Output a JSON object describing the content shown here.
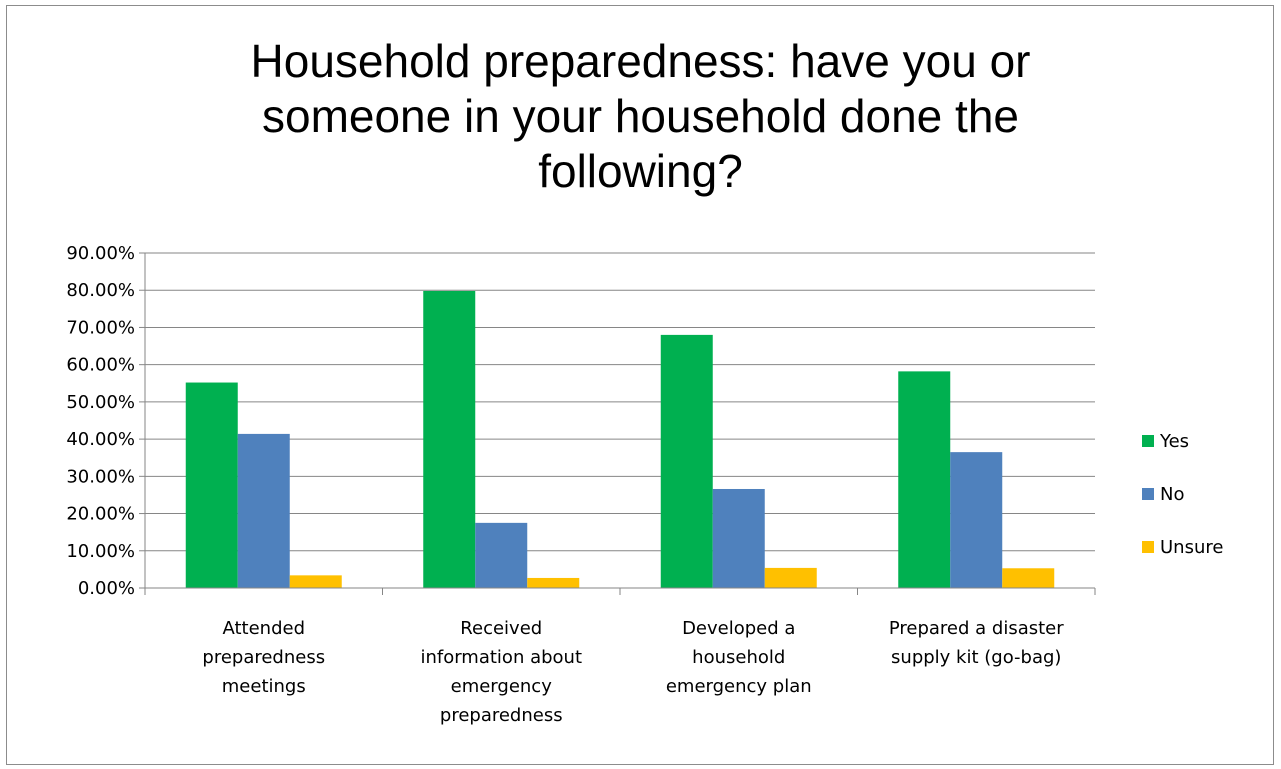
{
  "chart_data": {
    "type": "bar",
    "title_lines": [
      "Household preparedness: have you or",
      "someone in your household done the",
      "following?"
    ],
    "categories": [
      [
        "Attended",
        "preparedness",
        "meetings"
      ],
      [
        "Received",
        "information about",
        "emergency",
        "preparedness"
      ],
      [
        "Developed a",
        "household",
        "emergency plan"
      ],
      [
        "Prepared a disaster",
        "supply kit (go-bag)"
      ]
    ],
    "series": [
      {
        "name": "Yes",
        "color": "#00B050",
        "values": [
          55.2,
          79.8,
          68.0,
          58.2
        ]
      },
      {
        "name": "No",
        "color": "#4F81BD",
        "values": [
          41.4,
          17.5,
          26.6,
          36.5
        ]
      },
      {
        "name": "Unsure",
        "color": "#FFC000",
        "values": [
          3.4,
          2.7,
          5.4,
          5.3
        ]
      }
    ],
    "ylim": [
      0,
      90
    ],
    "yticks": [
      "0.00%",
      "10.00%",
      "20.00%",
      "30.00%",
      "40.00%",
      "50.00%",
      "60.00%",
      "70.00%",
      "80.00%",
      "90.00%"
    ],
    "grid": true,
    "legend_position": "right"
  }
}
